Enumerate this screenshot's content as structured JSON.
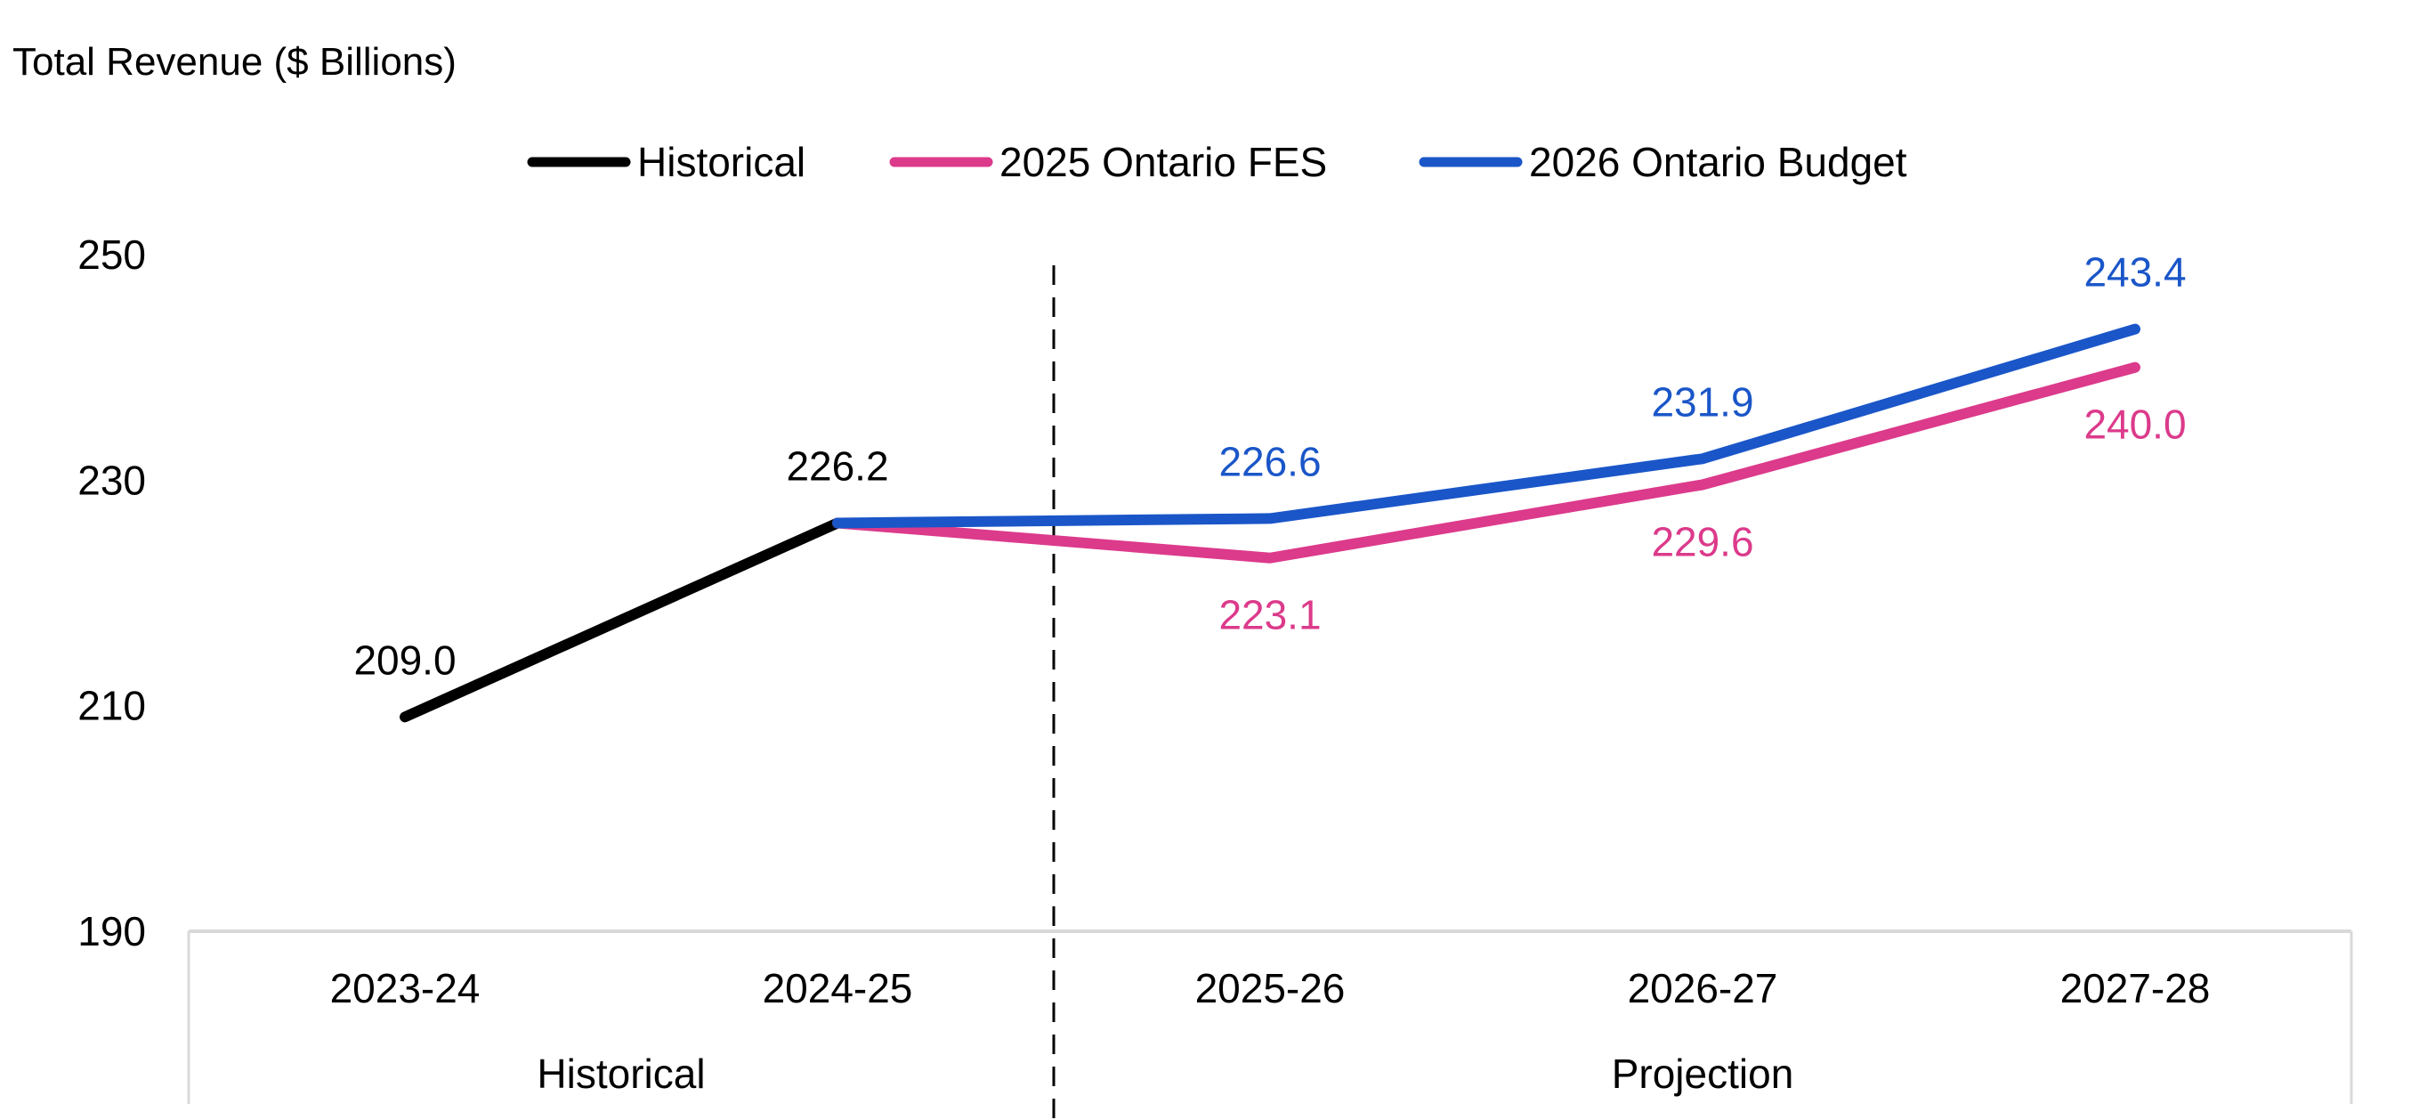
{
  "chart_data": {
    "type": "line",
    "title": "Total Revenue ($ Billions)",
    "xlabel": "",
    "ylabel": "Total Revenue ($ Billions)",
    "ylim": [
      190,
      250
    ],
    "yticks": [
      190,
      210,
      230,
      250
    ],
    "grid": false,
    "legend_position": "top-center",
    "categories": [
      "2023-24",
      "2024-25",
      "2025-26",
      "2026-27",
      "2027-28"
    ],
    "category_groups": [
      {
        "label": "Historical",
        "categories": [
          "2023-24",
          "2024-25"
        ]
      },
      {
        "label": "Projection",
        "categories": [
          "2025-26",
          "2026-27",
          "2027-28"
        ]
      }
    ],
    "divider_after_category": "2024-25",
    "series": [
      {
        "name": "Historical",
        "color": "#000000",
        "values": [
          209.0,
          226.2,
          null,
          null,
          null
        ],
        "labels": [
          "209.0",
          "226.2",
          null,
          null,
          null
        ],
        "label_position": "above"
      },
      {
        "name": "2025 Ontario FES",
        "color": "#DC3A8B",
        "values": [
          null,
          226.2,
          223.1,
          229.6,
          240.0
        ],
        "labels": [
          null,
          null,
          "223.1",
          "229.6",
          "240.0"
        ],
        "label_position": "below"
      },
      {
        "name": "2026 Ontario Budget",
        "color": "#1A56C8",
        "values": [
          null,
          226.2,
          226.6,
          231.9,
          243.4
        ],
        "labels": [
          null,
          null,
          "226.6",
          "231.9",
          "243.4"
        ],
        "label_position": "above"
      }
    ]
  }
}
